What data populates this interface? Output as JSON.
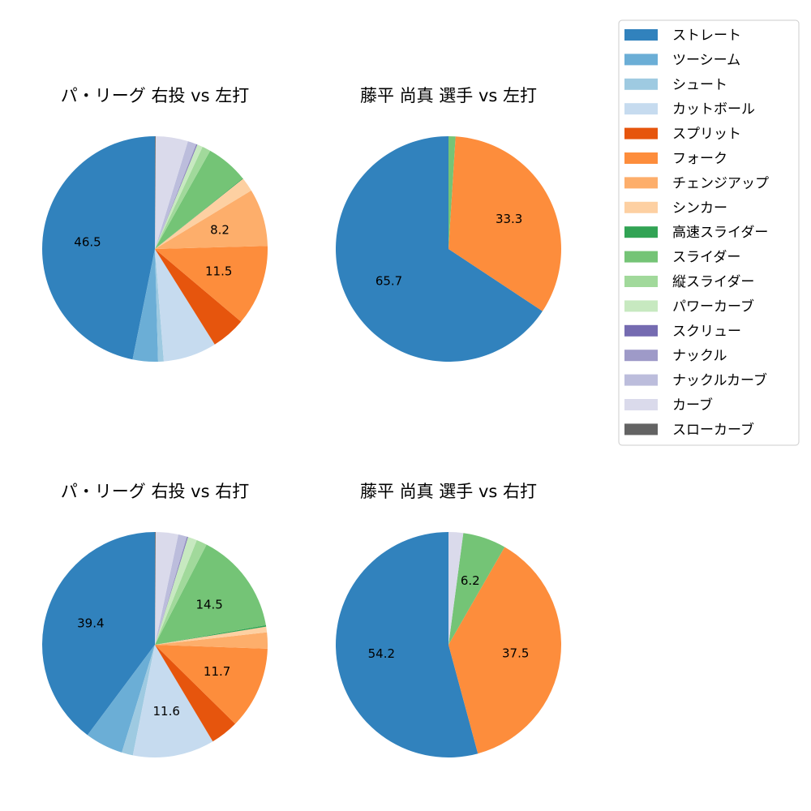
{
  "chart_data": [
    {
      "type": "pie",
      "title": "パ・リーグ 右投 vs 左打",
      "slices": [
        {
          "name": "ストレート",
          "value": 46.5,
          "label": "46.5"
        },
        {
          "name": "ツーシーム",
          "value": 3.6,
          "label": ""
        },
        {
          "name": "シュート",
          "value": 0.8,
          "label": ""
        },
        {
          "name": "カットボール",
          "value": 7.6,
          "label": ""
        },
        {
          "name": "スプリット",
          "value": 4.9,
          "label": ""
        },
        {
          "name": "フォーク",
          "value": 11.5,
          "label": "11.5"
        },
        {
          "name": "チェンジアップ",
          "value": 8.2,
          "label": "8.2"
        },
        {
          "name": "シンカー",
          "value": 2.0,
          "label": ""
        },
        {
          "name": "高速スライダー",
          "value": 0.1,
          "label": ""
        },
        {
          "name": "スライダー",
          "value": 6.0,
          "label": ""
        },
        {
          "name": "縦スライダー",
          "value": 1.2,
          "label": ""
        },
        {
          "name": "パワーカーブ",
          "value": 0.8,
          "label": ""
        },
        {
          "name": "スクリュー",
          "value": 0.1,
          "label": ""
        },
        {
          "name": "ナックル",
          "value": 0.1,
          "label": ""
        },
        {
          "name": "ナックルカーブ",
          "value": 1.2,
          "label": ""
        },
        {
          "name": "カーブ",
          "value": 4.6,
          "label": ""
        },
        {
          "name": "スローカーブ",
          "value": 0.1,
          "label": ""
        }
      ]
    },
    {
      "type": "pie",
      "title": "藤平 尚真 選手 vs 左打",
      "slices": [
        {
          "name": "ストレート",
          "value": 65.7,
          "label": "65.7"
        },
        {
          "name": "フォーク",
          "value": 33.3,
          "label": "33.3"
        },
        {
          "name": "スライダー",
          "value": 1.0,
          "label": ""
        }
      ]
    },
    {
      "type": "pie",
      "title": "パ・リーグ 右投 vs 右打",
      "slices": [
        {
          "name": "ストレート",
          "value": 39.4,
          "label": "39.4"
        },
        {
          "name": "ツーシーム",
          "value": 5.4,
          "label": ""
        },
        {
          "name": "シュート",
          "value": 1.6,
          "label": ""
        },
        {
          "name": "カットボール",
          "value": 11.6,
          "label": "11.6"
        },
        {
          "name": "スプリット",
          "value": 4.0,
          "label": ""
        },
        {
          "name": "フォーク",
          "value": 11.7,
          "label": "11.7"
        },
        {
          "name": "チェンジアップ",
          "value": 2.3,
          "label": ""
        },
        {
          "name": "シンカー",
          "value": 0.8,
          "label": ""
        },
        {
          "name": "高速スライダー",
          "value": 0.2,
          "label": ""
        },
        {
          "name": "スライダー",
          "value": 14.5,
          "label": "14.5"
        },
        {
          "name": "縦スライダー",
          "value": 1.5,
          "label": ""
        },
        {
          "name": "パワーカーブ",
          "value": 1.3,
          "label": ""
        },
        {
          "name": "スクリュー",
          "value": 0.1,
          "label": ""
        },
        {
          "name": "ナックル",
          "value": 0.1,
          "label": ""
        },
        {
          "name": "ナックルカーブ",
          "value": 1.2,
          "label": ""
        },
        {
          "name": "カーブ",
          "value": 3.2,
          "label": ""
        },
        {
          "name": "スローカーブ",
          "value": 0.1,
          "label": ""
        }
      ]
    },
    {
      "type": "pie",
      "title": "藤平 尚真 選手 vs 右打",
      "slices": [
        {
          "name": "ストレート",
          "value": 54.2,
          "label": "54.2"
        },
        {
          "name": "フォーク",
          "value": 37.5,
          "label": "37.5"
        },
        {
          "name": "スライダー",
          "value": 6.2,
          "label": "6.2"
        },
        {
          "name": "カーブ",
          "value": 2.1,
          "label": ""
        }
      ]
    }
  ],
  "legend": {
    "placement": "top-right",
    "entries": [
      {
        "name": "ストレート",
        "color": "#3182bd"
      },
      {
        "name": "ツーシーム",
        "color": "#6baed6"
      },
      {
        "name": "シュート",
        "color": "#9ecae1"
      },
      {
        "name": "カットボール",
        "color": "#c6dbef"
      },
      {
        "name": "スプリット",
        "color": "#e6550d"
      },
      {
        "name": "フォーク",
        "color": "#fd8d3c"
      },
      {
        "name": "チェンジアップ",
        "color": "#fdae6b"
      },
      {
        "name": "シンカー",
        "color": "#fdd0a2"
      },
      {
        "name": "高速スライダー",
        "color": "#31a354"
      },
      {
        "name": "スライダー",
        "color": "#74c476"
      },
      {
        "name": "縦スライダー",
        "color": "#a1d99b"
      },
      {
        "name": "パワーカーブ",
        "color": "#c7e9c0"
      },
      {
        "name": "スクリュー",
        "color": "#756bb1"
      },
      {
        "name": "ナックル",
        "color": "#9e9ac8"
      },
      {
        "name": "ナックルカーブ",
        "color": "#bcbddc"
      },
      {
        "name": "カーブ",
        "color": "#dadaeb"
      },
      {
        "name": "スローカーブ",
        "color": "#636363"
      }
    ]
  }
}
